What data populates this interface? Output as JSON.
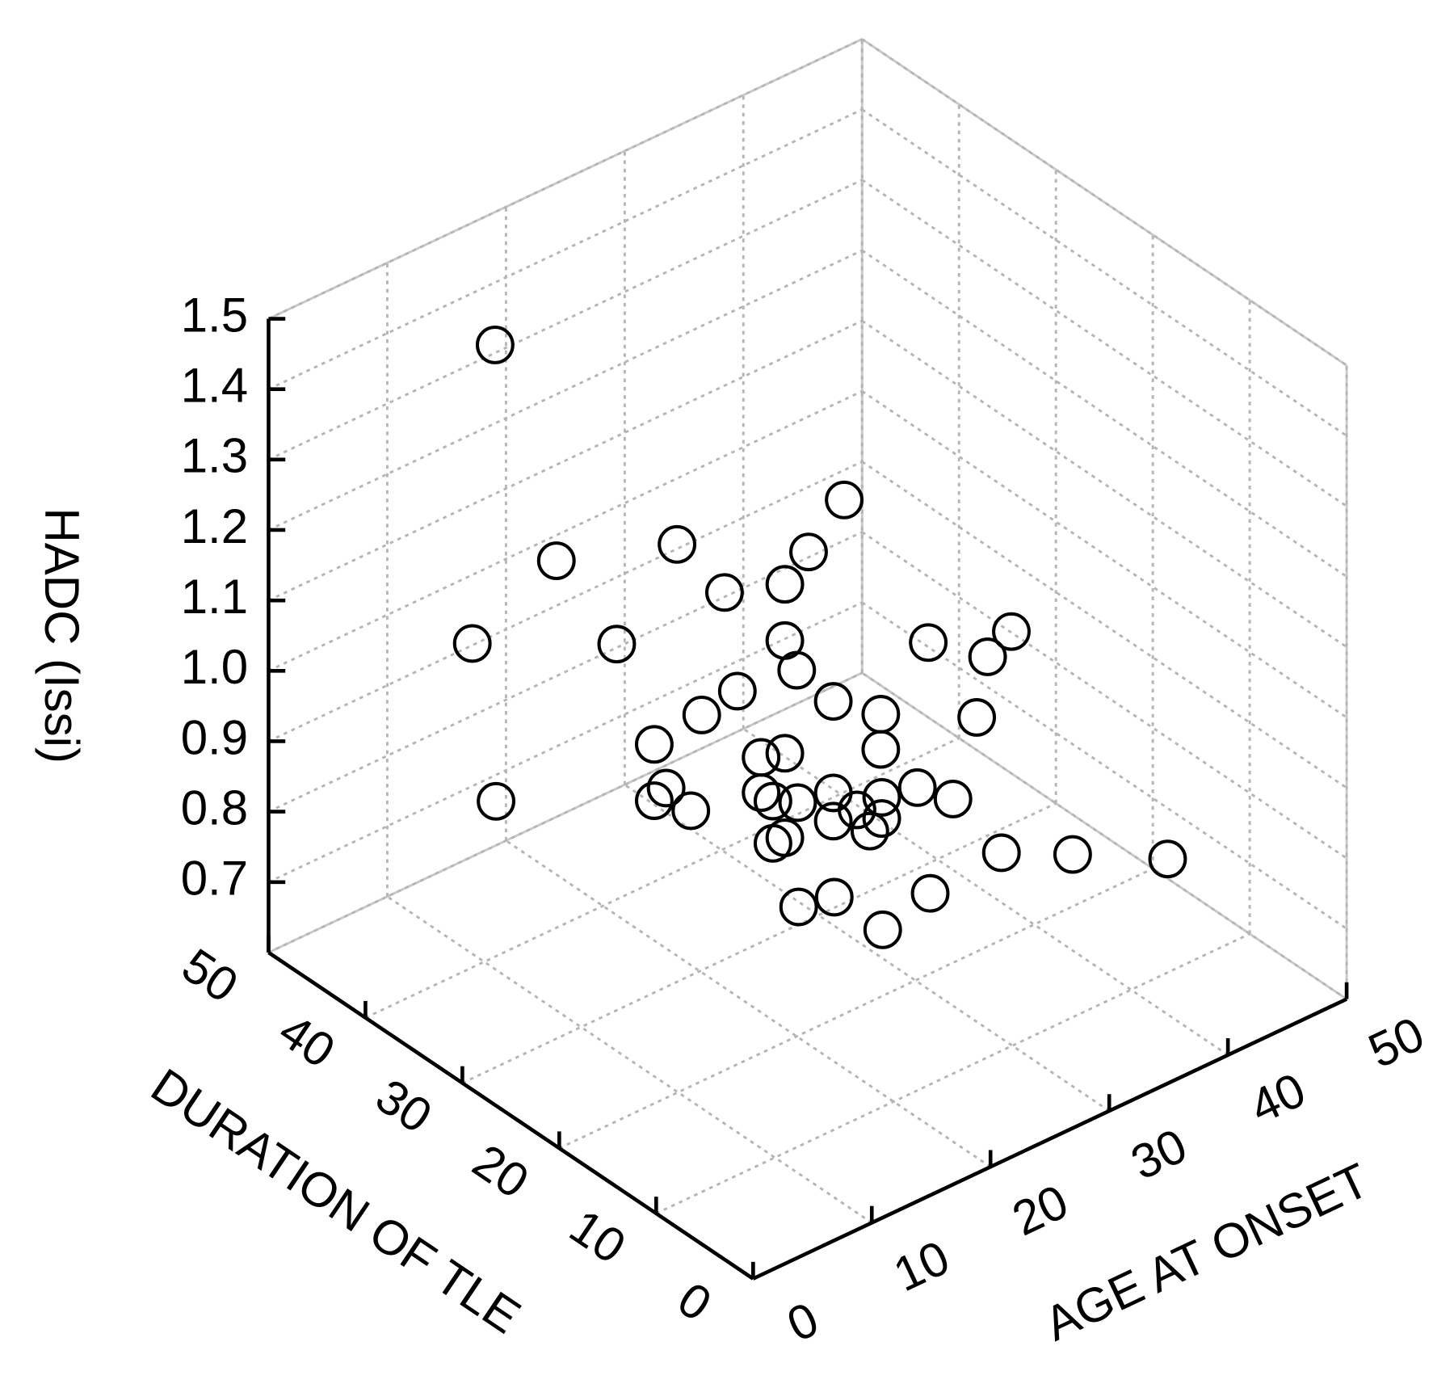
{
  "chart_data": {
    "type": "scatter3d",
    "x_label": "AGE AT ONSET",
    "y_label": "DURATION OF TLE",
    "z_label": "HADC (Issi)",
    "xlim": [
      0,
      50
    ],
    "xticks": [
      0,
      10,
      20,
      30,
      40,
      50
    ],
    "ylim": [
      0,
      50
    ],
    "yticks": [
      0,
      10,
      20,
      30,
      40,
      50
    ],
    "zlim": [
      0.6,
      1.5
    ],
    "zticks": [
      0.7,
      0.8,
      0.9,
      {
        "value": 1,
        "label": "1.0"
      },
      1.1,
      1.2,
      1.3,
      1.4,
      1.5
    ],
    "grid": true,
    "color": "#000000",
    "x": [
      15,
      24,
      14,
      21,
      12,
      18,
      19,
      9,
      13,
      19,
      27,
      34,
      32,
      20,
      15,
      12,
      19,
      23,
      27,
      8,
      17,
      23,
      11,
      9,
      8,
      7,
      17,
      18,
      16,
      19,
      21,
      19,
      22,
      25,
      19,
      19,
      18,
      18,
      19,
      25,
      31,
      39,
      19,
      15,
      12,
      15,
      19
    ],
    "y": [
      45,
      20,
      25,
      20,
      35,
      25,
      20,
      40,
      30,
      20,
      15,
      15,
      15,
      20,
      20,
      20,
      15,
      15,
      10,
      20,
      20,
      15,
      40,
      20,
      20,
      15,
      20,
      20,
      15,
      15,
      15,
      10,
      10,
      10,
      15,
      10,
      10,
      20,
      20,
      5,
      5,
      5,
      5,
      10,
      10,
      5,
      20
    ],
    "z": [
      1.39,
      1.33,
      1.3,
      1.28,
      1.2,
      1.2,
      1.25,
      1.06,
      1.12,
      1.17,
      1.15,
      1.11,
      1.09,
      1.12,
      1.13,
      1.12,
      1.13,
      1.08,
      1.09,
      1.11,
      1.02,
      1.03,
      0.82,
      1.04,
      1.03,
      1.07,
      0.97,
      0.95,
      1.01,
      1.0,
      0.96,
      1.04,
      1.03,
      0.99,
      0.96,
      1.01,
      1.0,
      0.89,
      0.89,
      0.96,
      0.91,
      0.84,
      0.95,
      0.93,
      0.94,
      0.93,
      1.01
    ]
  }
}
